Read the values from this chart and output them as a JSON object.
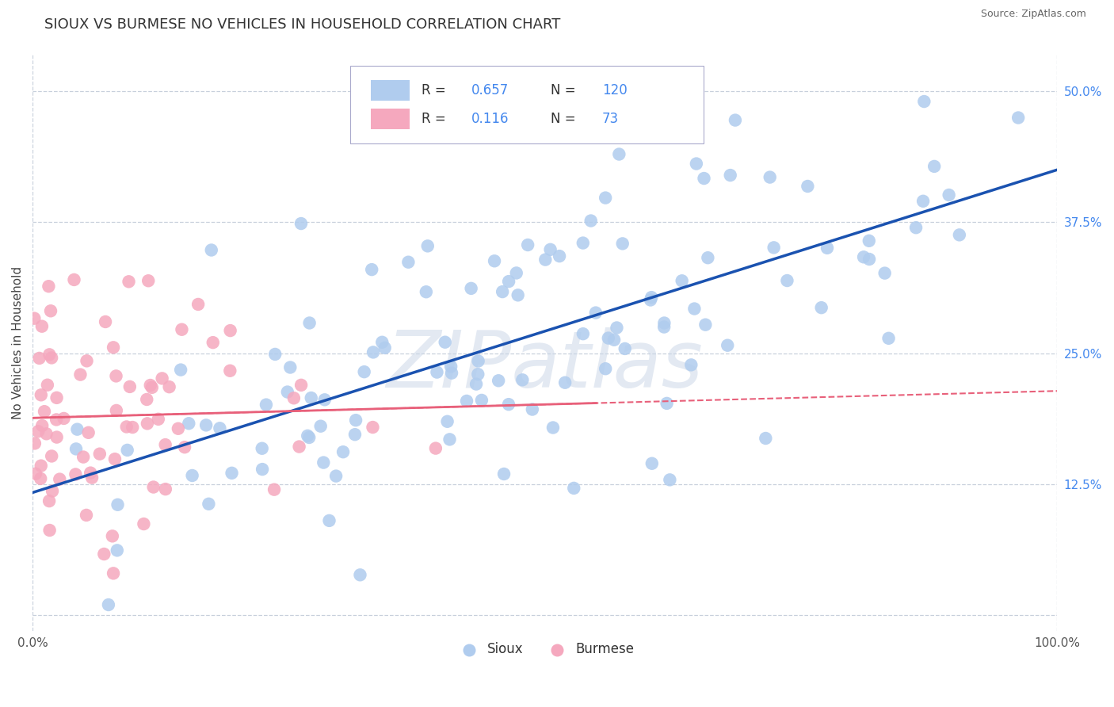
{
  "title": "SIOUX VS BURMESE NO VEHICLES IN HOUSEHOLD CORRELATION CHART",
  "source_text": "Source: ZipAtlas.com",
  "ylabel": "No Vehicles in Household",
  "xlim": [
    0.0,
    1.0
  ],
  "ylim": [
    -0.015,
    0.535
  ],
  "xticks": [
    0.0,
    0.25,
    0.5,
    0.75,
    1.0
  ],
  "xtick_labels": [
    "0.0%",
    "",
    "",
    "",
    "100.0%"
  ],
  "yticks": [
    0.0,
    0.125,
    0.25,
    0.375,
    0.5
  ],
  "ytick_labels": [
    "",
    "12.5%",
    "25.0%",
    "37.5%",
    "50.0%"
  ],
  "sioux_color": "#b0ccee",
  "burmese_color": "#f5a8be",
  "sioux_line_color": "#1a52b0",
  "burmese_line_solid_color": "#e8607a",
  "burmese_line_dash_color": "#e8607a",
  "accent_color": "#4488ee",
  "watermark_color": "#ccd8e8",
  "background_color": "#ffffff",
  "grid_color": "#c8d0dc",
  "title_fontsize": 13,
  "axis_label_fontsize": 11,
  "tick_fontsize": 11,
  "source_fontsize": 9,
  "legend_label_sioux": "Sioux",
  "legend_label_burmese": "Burmese",
  "sioux_R": 0.657,
  "sioux_N": 120,
  "burmese_R": 0.116,
  "burmese_N": 73
}
